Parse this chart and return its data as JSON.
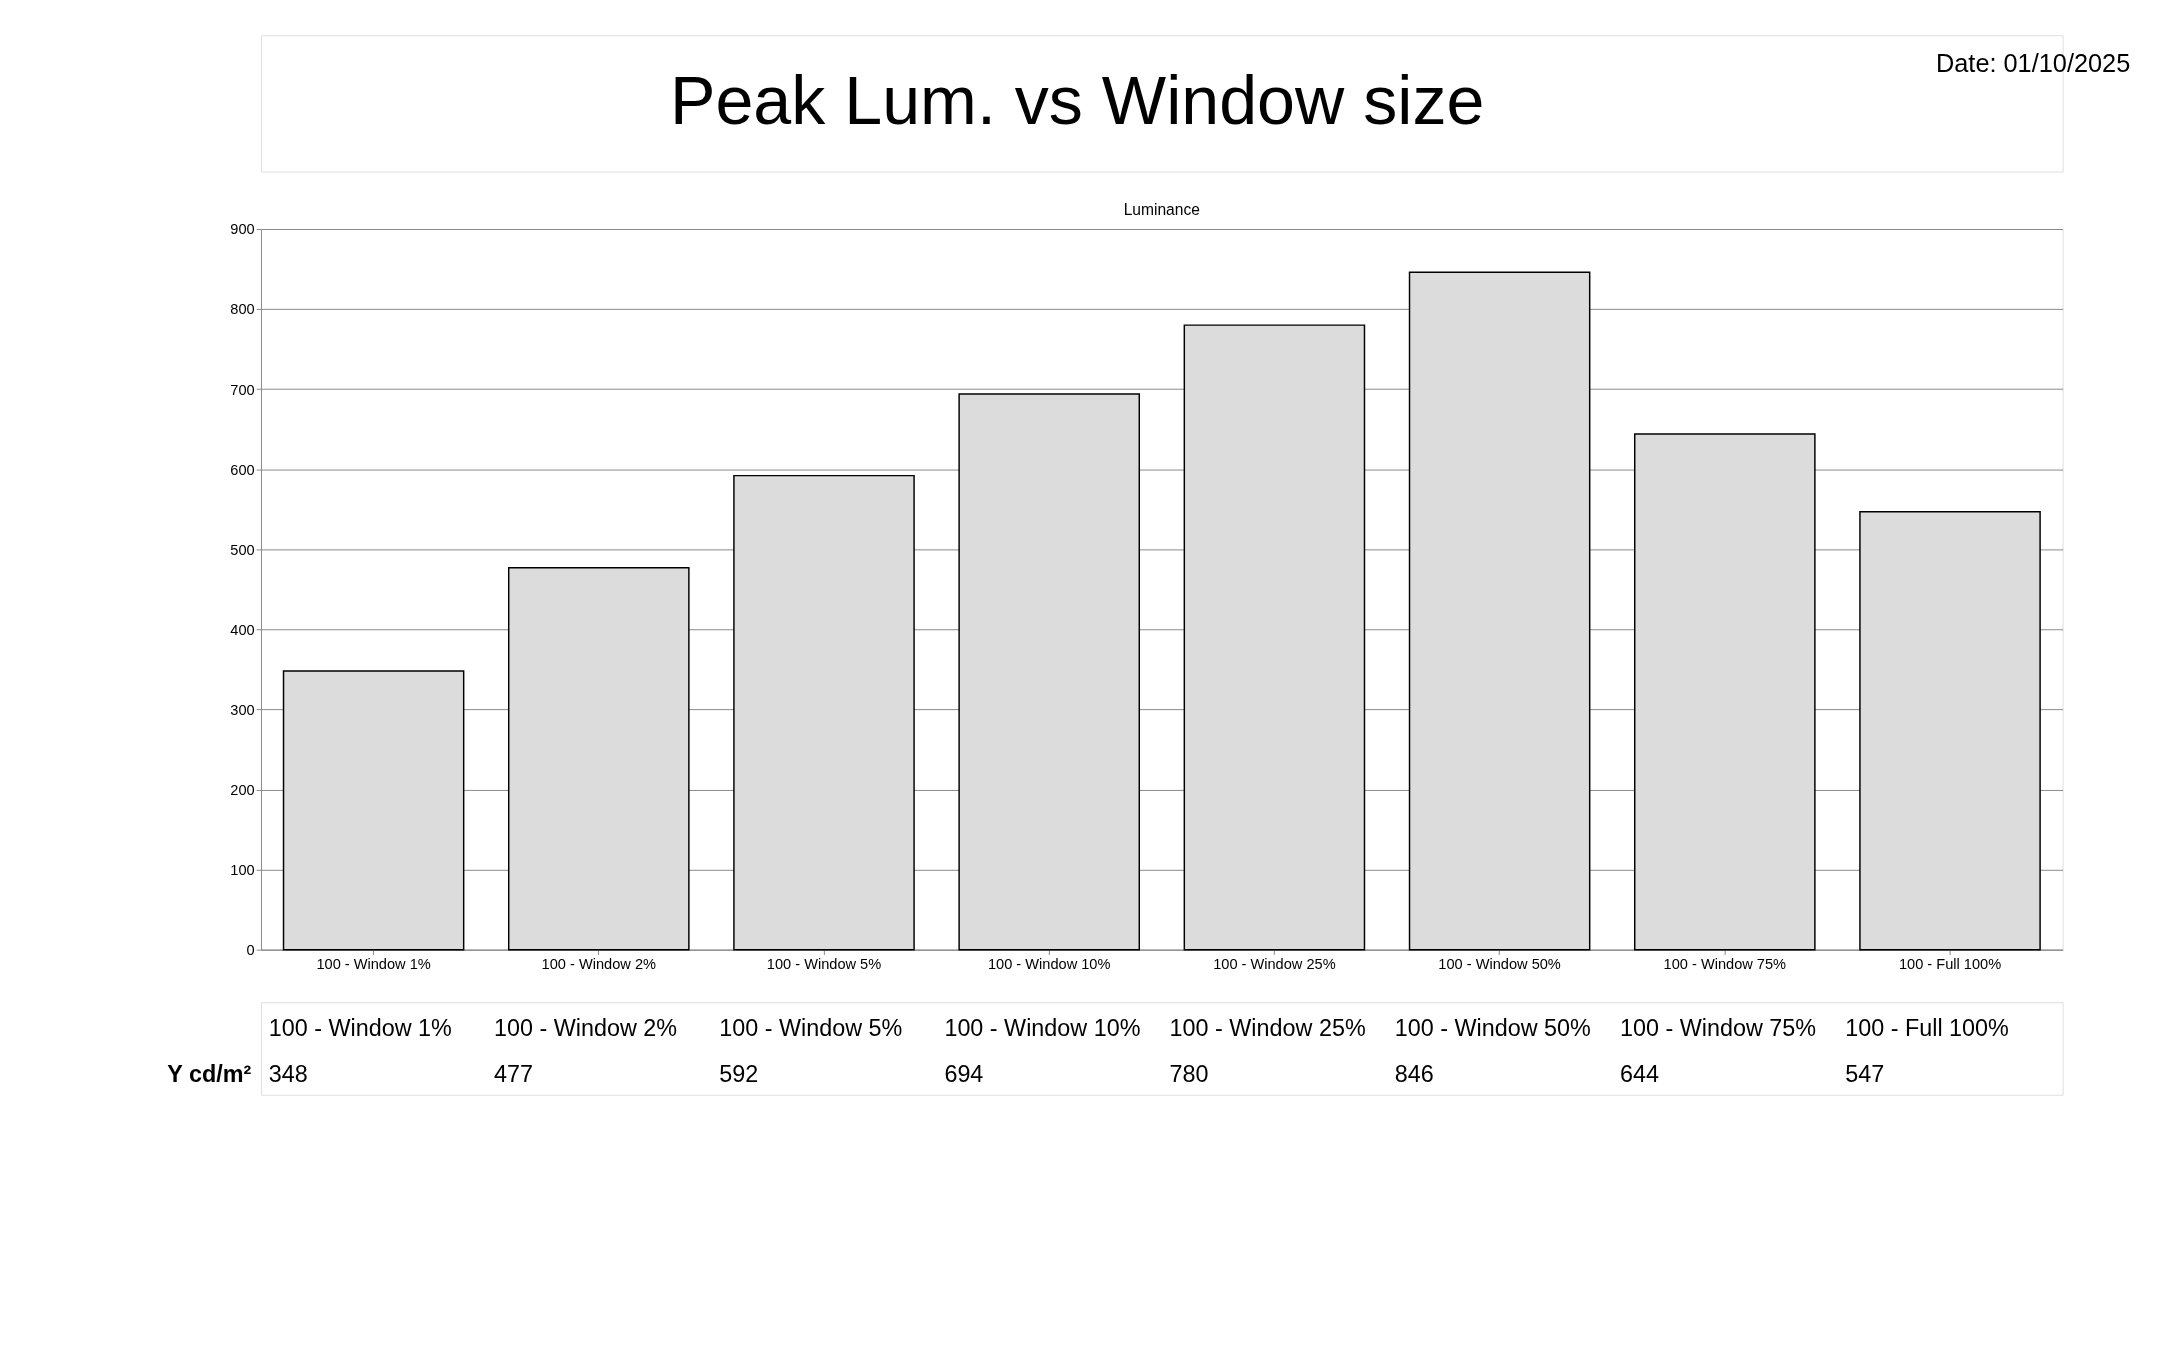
{
  "chart_data": {
    "type": "bar",
    "title": "Peak Lum. vs Window size",
    "subtitle": "Luminance",
    "categories": [
      "100 - Window  1%",
      "100 - Window  2%",
      "100 - Window  5%",
      "100 - Window 10%",
      "100 - Window 25%",
      "100 - Window 50%",
      "100 - Window 75%",
      "100 - Full  100%"
    ],
    "values": [
      348,
      477,
      592,
      694,
      780,
      846,
      644,
      547
    ],
    "color": "#dcdcdc",
    "ylim": [
      0,
      900
    ],
    "yticks": [
      0,
      100,
      200,
      300,
      400,
      500,
      600,
      700,
      800,
      900
    ],
    "grid": "y",
    "data_labels": true,
    "annotations": [
      "Date: 01/10/2025",
      "Y cd/m²"
    ]
  }
}
